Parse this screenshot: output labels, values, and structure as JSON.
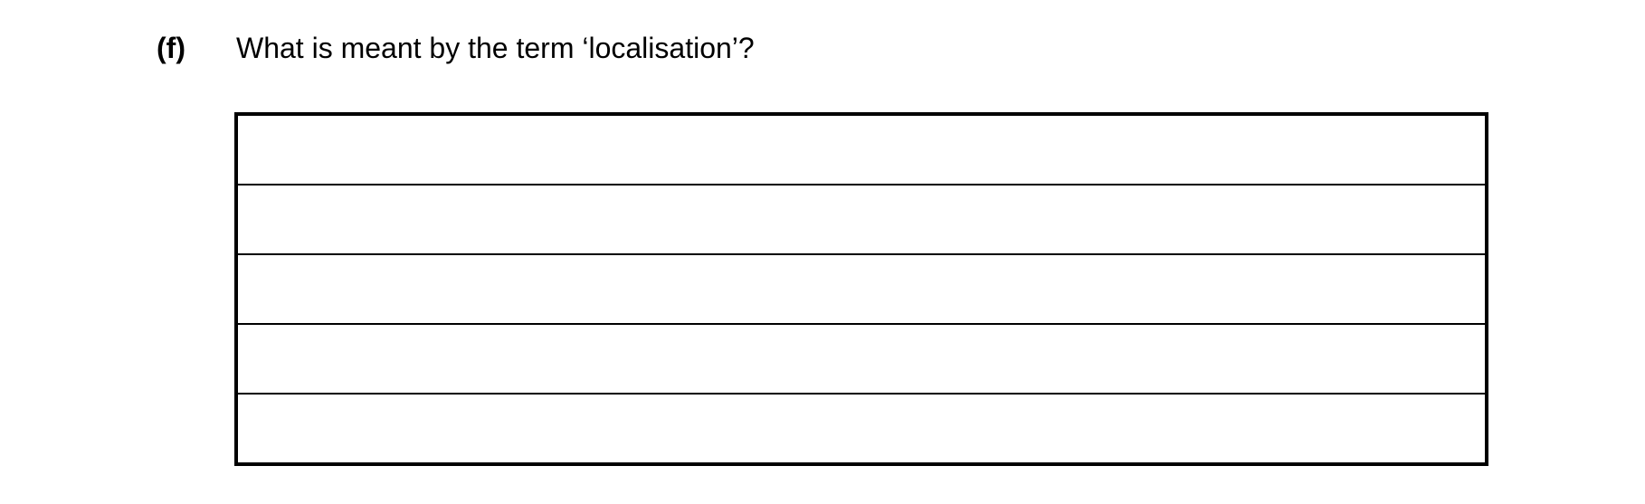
{
  "question": {
    "label": "(f)",
    "text": "What is meant by the term ‘localisation’?"
  },
  "answer_box": {
    "row_count": 5,
    "rows": [
      {
        "value": ""
      },
      {
        "value": ""
      },
      {
        "value": ""
      },
      {
        "value": ""
      },
      {
        "value": ""
      }
    ],
    "border_color": "#000000"
  },
  "page": {
    "background_color": "#ffffff",
    "text_color": "#000000"
  }
}
